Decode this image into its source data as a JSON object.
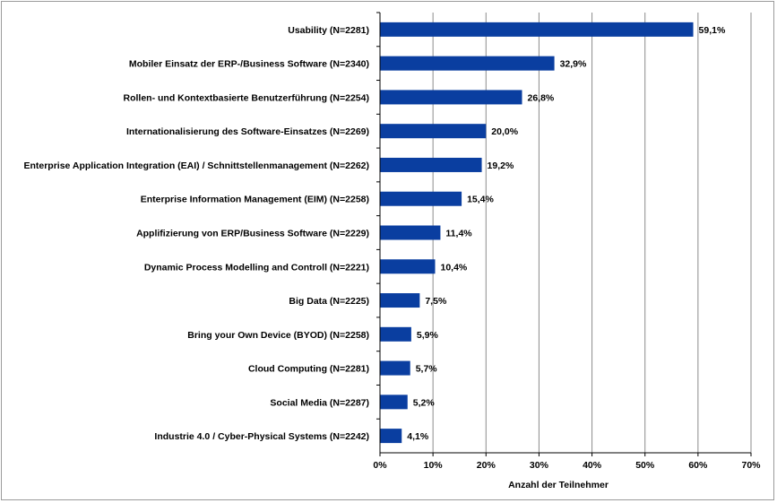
{
  "chart_data": {
    "type": "bar",
    "orientation": "horizontal",
    "categories": [
      "Usability (N=2281)",
      "Mobiler Einsatz der ERP-/Business Software (N=2340)",
      "Rollen- und Kontextbasierte Benutzerführung  (N=2254)",
      "Internationalisierung  des Software-Einsatzes (N=2269)",
      "Enterprise Application Integration (EAI) / Schnittstellenmanagement (N=2262)",
      "Enterprise Information Management  (EIM)  (N=2258)",
      "Applifizierung von ERP/Business Software (N=2229)",
      "Dynamic Process Modelling and Controll (N=2221)",
      "Big Data (N=2225)",
      "Bring your Own  Device (BYOD) (N=2258)",
      "Cloud Computing (N=2281)",
      "Social Media (N=2287)",
      "Industrie 4.0 / Cyber-Physical  Systems (N=2242)"
    ],
    "values": [
      59.1,
      32.9,
      26.8,
      20.0,
      19.2,
      15.4,
      11.4,
      10.4,
      7.5,
      5.9,
      5.7,
      5.2,
      4.1
    ],
    "value_labels": [
      "59,1%",
      "32,9%",
      "26,8%",
      "20,0%",
      "19,2%",
      "15,4%",
      "11,4%",
      "10,4%",
      "7,5%",
      "5,9%",
      "5,7%",
      "5,2%",
      "4,1%"
    ],
    "xticks": [
      "0%",
      "10%",
      "20%",
      "30%",
      "40%",
      "50%",
      "60%",
      "70%"
    ],
    "xlim": [
      0,
      70
    ],
    "xlabel": "Anzahl der Teilnehmer",
    "title": "",
    "grid": true,
    "bar_color": "#0a3ea0"
  }
}
